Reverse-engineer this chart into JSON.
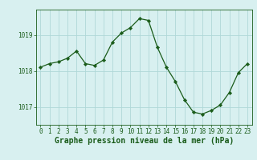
{
  "x": [
    0,
    1,
    2,
    3,
    4,
    5,
    6,
    7,
    8,
    9,
    10,
    11,
    12,
    13,
    14,
    15,
    16,
    17,
    18,
    19,
    20,
    21,
    22,
    23
  ],
  "y": [
    1018.1,
    1018.2,
    1018.25,
    1018.35,
    1018.55,
    1018.2,
    1018.15,
    1018.3,
    1018.8,
    1019.05,
    1019.2,
    1019.45,
    1019.4,
    1018.65,
    1018.1,
    1017.7,
    1017.2,
    1016.85,
    1016.8,
    1016.9,
    1017.05,
    1017.4,
    1017.95,
    1018.2
  ],
  "line_color": "#1a5c1a",
  "marker": "D",
  "marker_size": 2.2,
  "bg_color": "#d8f0f0",
  "grid_color": "#b0d8d8",
  "ylabel_ticks": [
    1017,
    1018,
    1019
  ],
  "xlabel_label": "Graphe pression niveau de la mer (hPa)",
  "xlim": [
    -0.5,
    23.5
  ],
  "ylim": [
    1016.5,
    1019.7
  ],
  "tick_fontsize": 5.5,
  "xlabel_fontsize": 7.0
}
